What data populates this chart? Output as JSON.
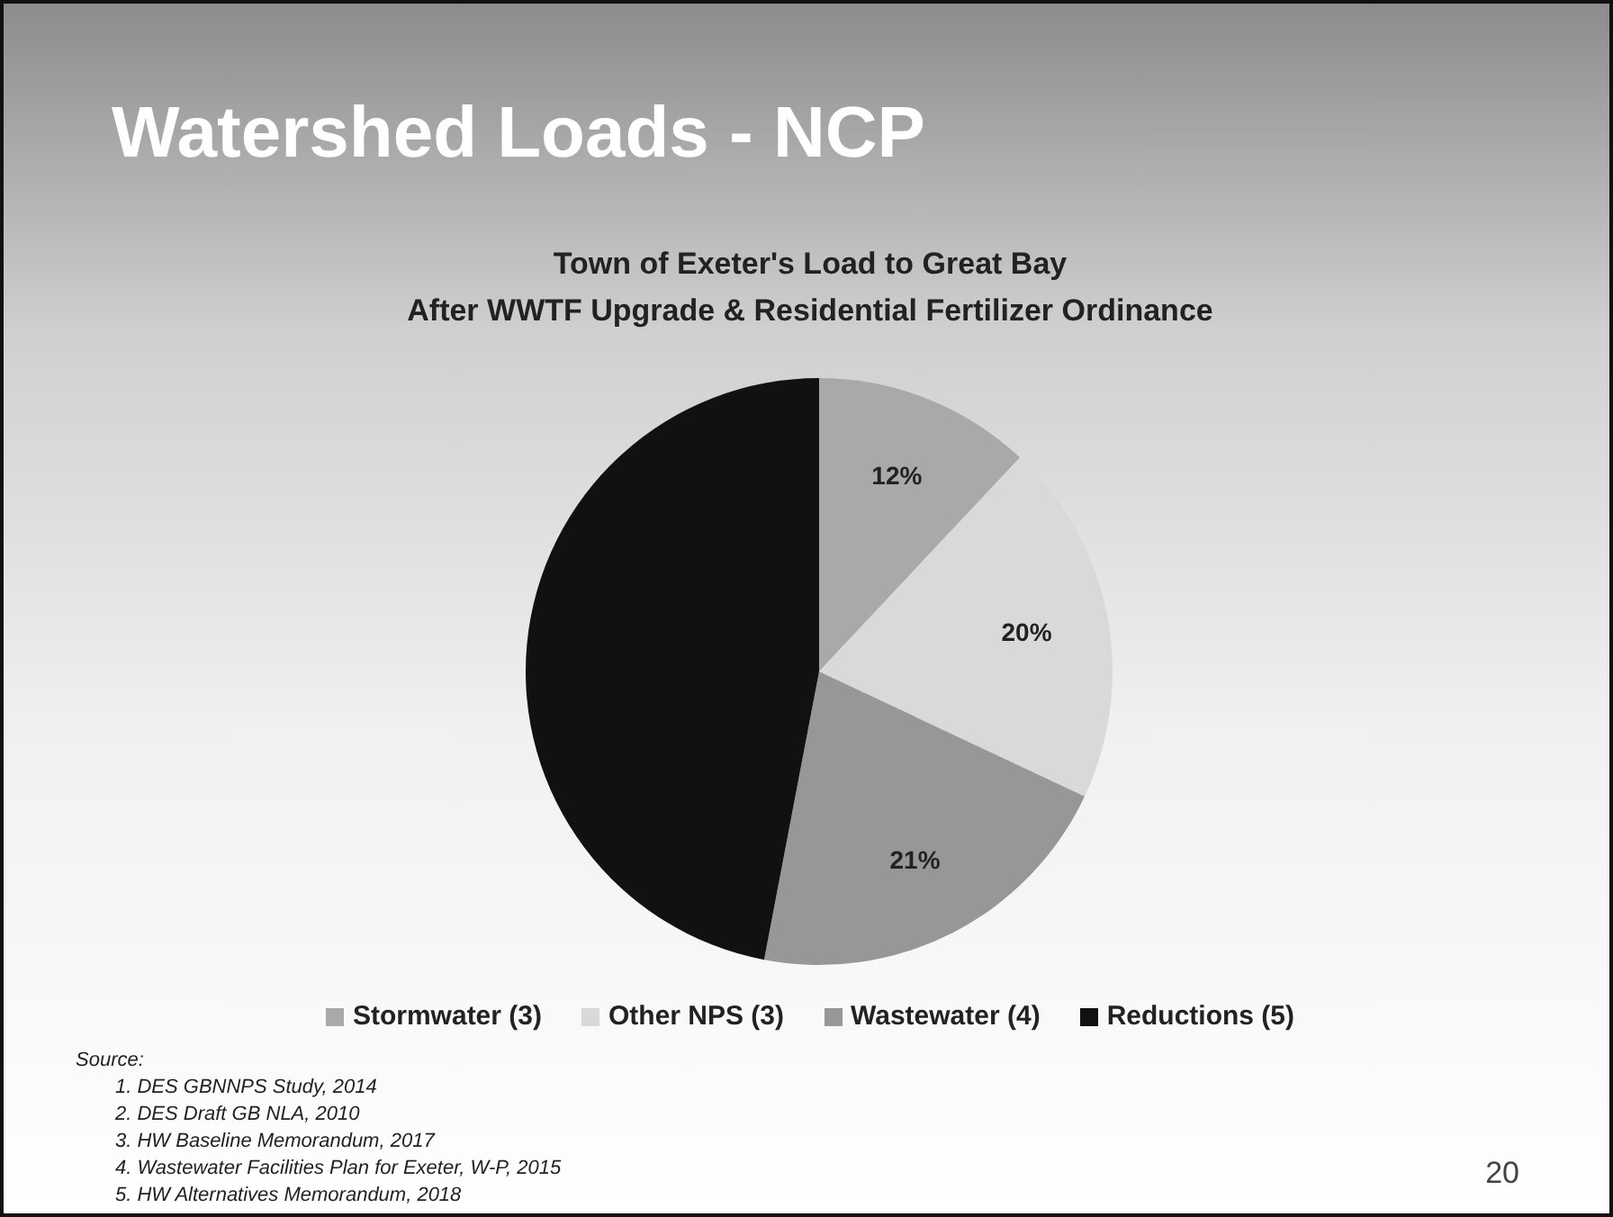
{
  "chart_data": {
    "type": "pie",
    "title": "Watershed Loads - NCP",
    "subtitle": "Town of Exeter's Load to Great Bay\nAfter WWTF Upgrade & Residential Fertilizer Ordinance",
    "categories": [
      "Stormwater (3)",
      "Other NPS (3)",
      "Wastewater (4)",
      "Reductions (5)"
    ],
    "values": [
      12,
      20,
      21,
      47
    ],
    "value_labels": [
      "12%",
      "20%",
      "21%",
      null
    ],
    "colors": [
      "#a9a9a9",
      "#d9d9d9",
      "#979797",
      "#111111"
    ],
    "legend": "bottom",
    "annotations": [
      "Source:",
      "1.  DES GBNNPS Study, 2014",
      "2.  DES Draft GB NLA, 2010",
      "3.  HW Baseline Memorandum, 2017",
      "4.  Wastewater Facilities Plan for Exeter, W-P, 2015",
      "5.  HW Alternatives Memorandum, 2018",
      "20"
    ]
  }
}
